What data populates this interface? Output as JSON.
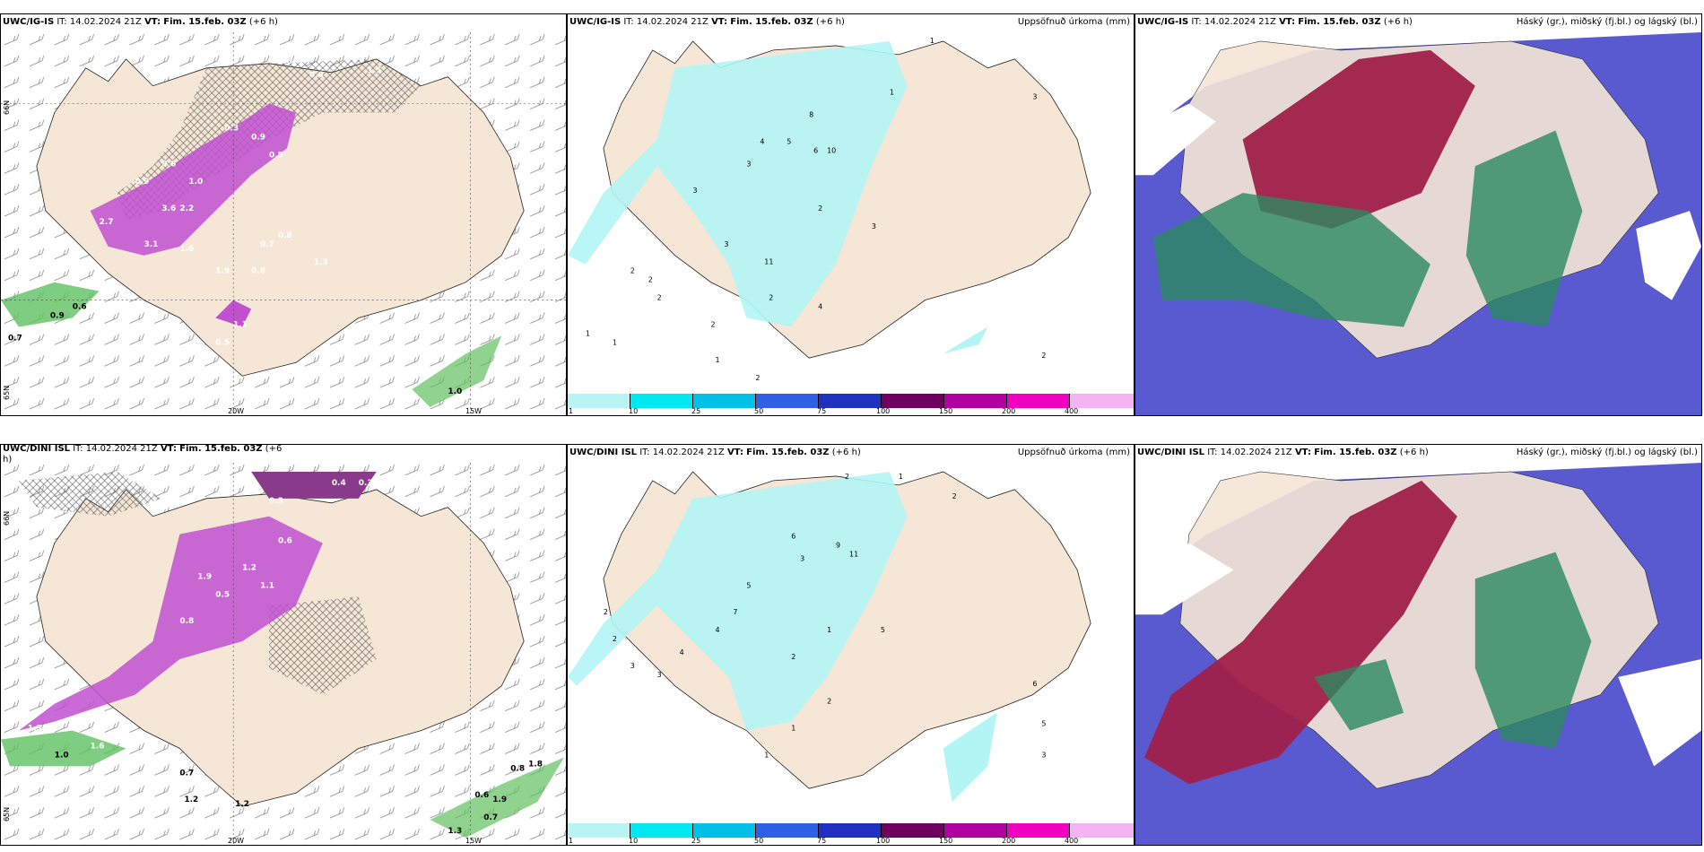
{
  "rows": [
    {
      "wind_panel": {
        "header": {
          "model": "UWC/IG-IS",
          "it_label": "IT:",
          "it_value": "14.02.2024 21Z",
          "vt_label": "VT:",
          "vt_value": "Fim. 15.feb. 03Z",
          "lead": "(+6 h)"
        },
        "lon_labels": [
          "20W",
          "15W"
        ],
        "lat_labels": [
          "66N",
          "65N"
        ],
        "values": [
          "0.3",
          "0.6",
          "0.6",
          "1.5",
          "0.3",
          "0.9",
          "0.5",
          "0.6",
          "1.0",
          "3.6",
          "2.2",
          "3.1",
          "1.6",
          "2.7",
          "1.9",
          "0.9",
          "0.8",
          "0.7",
          "0.8",
          "1.3",
          "1.1",
          "0.5",
          "0.6",
          "0.9",
          "1.0",
          "0.7"
        ]
      },
      "precip_panel": {
        "header": {
          "model": "UWC/IG-IS",
          "it_label": "IT:",
          "it_value": "14.02.2024 21Z",
          "vt_label": "VT:",
          "vt_value": "Fim. 15.feb. 03Z",
          "lead": "(+6 h)"
        },
        "title": "Uppsöfnuð úrkoma (mm)",
        "values": [
          "1",
          "1",
          "3",
          "4",
          "5",
          "6",
          "8",
          "10",
          "2",
          "3",
          "2",
          "1",
          "2",
          "11",
          "3",
          "4",
          "2",
          "3",
          "2",
          "1",
          "2",
          "1",
          "2",
          "3",
          "2"
        ]
      },
      "cloud_panel": {
        "header": {
          "model": "UWC/IG-IS",
          "it_label": "IT:",
          "it_value": "14.02.2024 21Z",
          "vt_label": "VT:",
          "vt_value": "Fim. 15.feb. 03Z",
          "lead": "(+6 h)"
        },
        "title": "Háský (gr.), miðský (fj.bl.) og lágský (bl.)"
      }
    },
    {
      "wind_panel": {
        "header": {
          "model": "UWC/DINI ISL",
          "it_label": "IT:",
          "it_value": "14.02.2024 21Z",
          "vt_label": "VT:",
          "vt_value": "Fim. 15.feb. 03Z",
          "lead": "(+6"
        },
        "header_line2": "h)",
        "lon_labels": [
          "20W",
          "15W"
        ],
        "lat_labels": [
          "66N",
          "65N"
        ],
        "values": [
          "0.3",
          "0.4",
          "0.3",
          "0.6",
          "1.2",
          "1.9",
          "0.5",
          "1.1",
          "0.8",
          "1.3",
          "1.6",
          "1.0",
          "0.7",
          "1.2",
          "1.8",
          "0.7",
          "0.6",
          "1.9",
          "0.8",
          "1.3",
          "1.2"
        ]
      },
      "precip_panel": {
        "header": {
          "model": "UWC/DINI ISL",
          "it_label": "IT:",
          "it_value": "14.02.2024 21Z",
          "vt_label": "VT:",
          "vt_value": "Fim. 15.feb. 03Z",
          "lead": "(+6 h)"
        },
        "title": "Uppsöfnuð úrkoma (mm)",
        "values": [
          "2",
          "1",
          "2",
          "6",
          "9",
          "11",
          "3",
          "5",
          "7",
          "4",
          "2",
          "1",
          "3",
          "5",
          "2",
          "4",
          "1",
          "2",
          "5",
          "3",
          "6",
          "1",
          "2",
          "3"
        ]
      },
      "cloud_panel": {
        "header": {
          "model": "UWC/DINI ISL",
          "it_label": "IT:",
          "it_value": "14.02.2024 21Z",
          "vt_label": "VT:",
          "vt_value": "Fim. 15.feb. 03Z",
          "lead": "(+6 h)"
        },
        "title": "Háský (gr.), miðský (fj.bl.) og lágský (bl.)"
      }
    }
  ],
  "colorbar": {
    "ticks": [
      "1",
      "10",
      "25",
      "50",
      "75",
      "100",
      "150",
      "200",
      "400"
    ],
    "colors": [
      "#b8f4f4",
      "#00e8f0",
      "#00c0e8",
      "#3060e8",
      "#2030c0",
      "#700060",
      "#b000a0",
      "#f000c0",
      "#f4b4f4"
    ]
  },
  "palette": {
    "land": "#f5e6d6",
    "precip_light": "#b3f5f5",
    "precip_purple": "#c050d0",
    "cloud_red": "#a0204a",
    "cloud_blue": "#5a5ad0",
    "cloud_green": "#2a8a60"
  }
}
